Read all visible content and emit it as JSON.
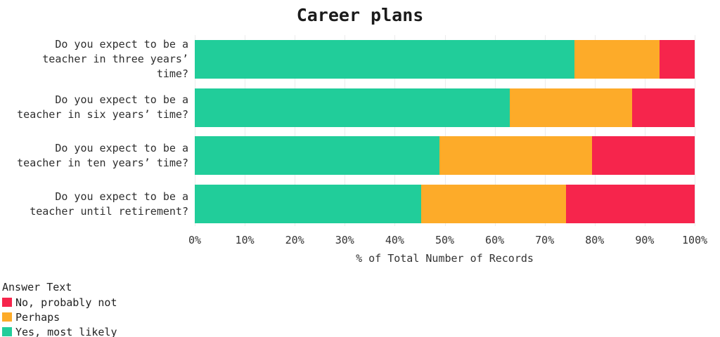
{
  "chart_data": {
    "type": "bar",
    "orientation": "horizontal",
    "stacked": true,
    "title": "Career plans",
    "xlabel": "% of Total Number of Records",
    "xlim": [
      0,
      100
    ],
    "x_ticks": [
      "0%",
      "10%",
      "20%",
      "30%",
      "40%",
      "50%",
      "60%",
      "70%",
      "80%",
      "90%",
      "100%"
    ],
    "categories": [
      "Do you expect to be a teacher in three years’ time?",
      "Do you expect to be a teacher in six years’ time?",
      "Do you expect to be a teacher in ten years’ time?",
      "Do you expect to be a teacher until retirement?"
    ],
    "series": [
      {
        "name": "Yes, most likely",
        "color": "#21cd9a",
        "values": [
          76,
          63,
          49,
          45.3
        ]
      },
      {
        "name": "Perhaps",
        "color": "#fdab29",
        "values": [
          17,
          24.5,
          30.5,
          28.9
        ]
      },
      {
        "name": "No, probably not",
        "color": "#f6254c",
        "values": [
          7,
          12.5,
          20.5,
          25.8
        ]
      }
    ],
    "legend": {
      "title": "Answer Text",
      "position": "bottom-left",
      "order": [
        "No, probably not",
        "Perhaps",
        "Yes, most likely"
      ]
    },
    "grid": {
      "vertical": true,
      "color": "#ececec"
    }
  }
}
